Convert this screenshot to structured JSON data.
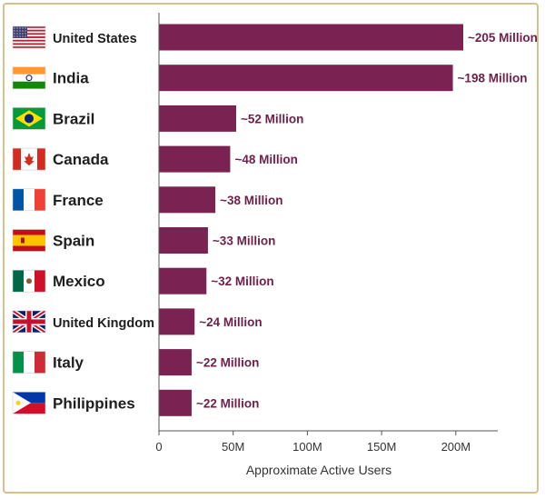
{
  "chart_data": {
    "type": "bar",
    "orientation": "horizontal",
    "title": "",
    "xlabel": "Approximate Active Users",
    "ylabel": "",
    "xlim": [
      0,
      230
    ],
    "xticks": [
      0,
      50,
      100,
      150,
      200
    ],
    "xtick_labels": [
      "0",
      "50M",
      "100M",
      "150M",
      "200M"
    ],
    "grid": false,
    "bar_color": "#7a2352",
    "categories": [
      "United States",
      "India",
      "Brazil",
      "Canada",
      "France",
      "Spain",
      "Mexico",
      "United Kingdom",
      "Italy",
      "Philippines"
    ],
    "flags": [
      "us-flag-icon",
      "india-flag-icon",
      "brazil-flag-icon",
      "canada-flag-icon",
      "france-flag-icon",
      "spain-flag-icon",
      "mexico-flag-icon",
      "uk-flag-icon",
      "italy-flag-icon",
      "philippines-flag-icon"
    ],
    "values": [
      205,
      198,
      52,
      48,
      38,
      33,
      32,
      24,
      22,
      22
    ],
    "value_labels": [
      "~205 Million",
      "~198 Million",
      "~52 Million",
      "~48 Million",
      "~38 Million",
      "~33 Million",
      "~32 Million",
      "~24 Million",
      "~22 Million",
      "~22 Million"
    ]
  }
}
